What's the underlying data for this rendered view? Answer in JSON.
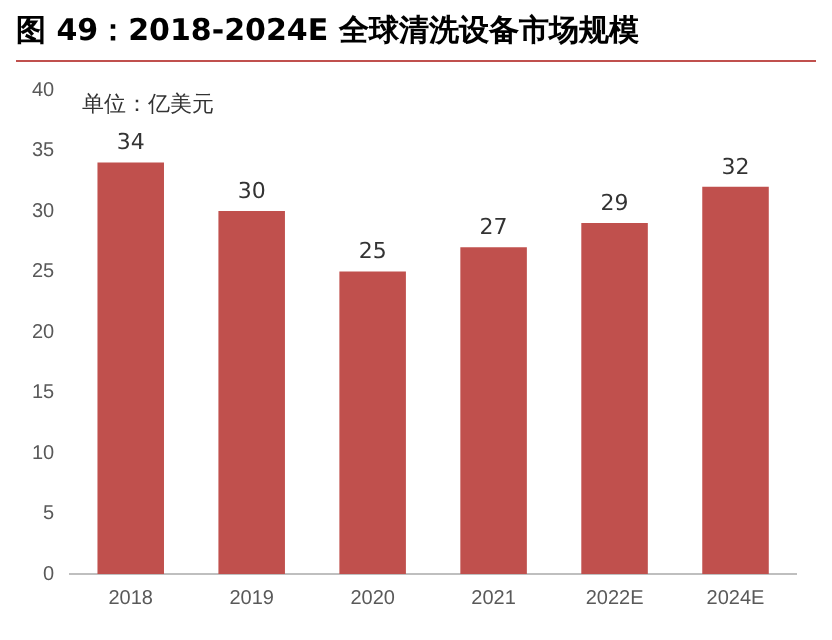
{
  "chart_data": {
    "type": "bar",
    "title": "图 49：2018-2024E 全球清洗设备市场规模",
    "categories": [
      "2018",
      "2019",
      "2020",
      "2021",
      "2022E",
      "2024E"
    ],
    "values": [
      34,
      30,
      25,
      27,
      29,
      32
    ],
    "color": "#c0504d",
    "ylim": [
      0,
      40
    ],
    "yticks": [
      0,
      5,
      10,
      15,
      20,
      25,
      30,
      35,
      40
    ],
    "grid": false,
    "legend": false,
    "data_labels": true,
    "annotations": [
      "单位：亿美元"
    ]
  }
}
